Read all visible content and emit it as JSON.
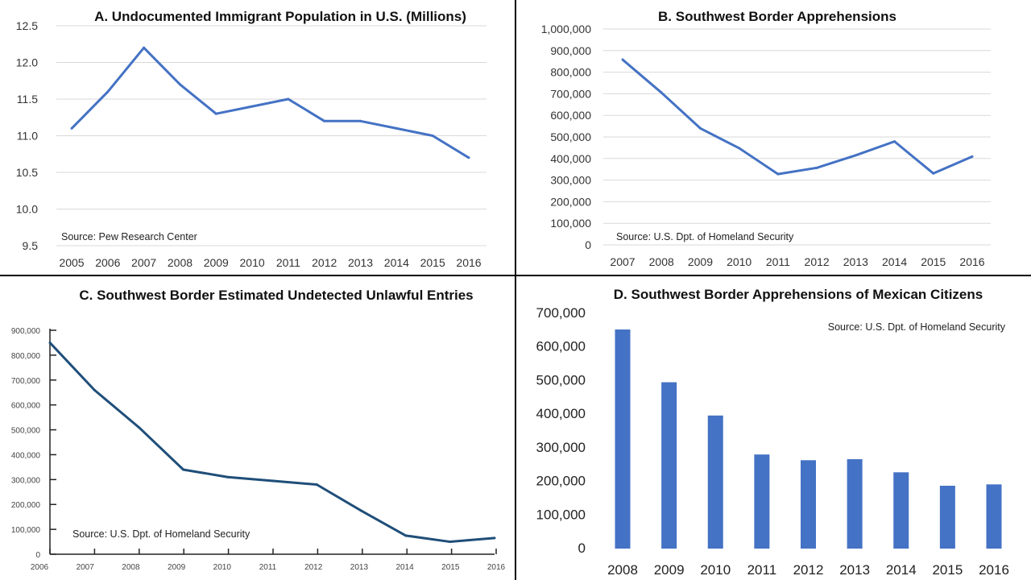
{
  "colors": {
    "line": "#4472c4",
    "line_c": "#1f4e79",
    "bar": "#4472c4",
    "grid": "#d9d9d9",
    "divider": "#000000"
  },
  "chart_data": [
    {
      "type": "line",
      "title": "A. Undocumented Immigrant Population in U.S. (Millions)",
      "source": "Source:  Pew Research Center",
      "categories": [
        "2005",
        "2006",
        "2007",
        "2008",
        "2009",
        "2010",
        "2011",
        "2012",
        "2013",
        "2014",
        "2015",
        "2016"
      ],
      "values": [
        11.1,
        11.6,
        12.2,
        11.7,
        11.3,
        11.4,
        11.5,
        11.2,
        11.2,
        11.1,
        11.0,
        10.7
      ],
      "yticks": [
        "9.5",
        "10.0",
        "10.5",
        "11.0",
        "11.5",
        "12.0",
        "12.5"
      ],
      "ylim": [
        9.5,
        12.5
      ],
      "grid": true
    },
    {
      "type": "line",
      "title": "B. Southwest Border Apprehensions",
      "source": "Source:  U.S. Dpt. of Homeland Security",
      "categories": [
        "2007",
        "2008",
        "2009",
        "2010",
        "2011",
        "2012",
        "2013",
        "2014",
        "2015",
        "2016"
      ],
      "values": [
        858000,
        705000,
        540000,
        448000,
        328000,
        357000,
        415000,
        479000,
        331000,
        409000
      ],
      "yticks": [
        "0",
        "100,000",
        "200,000",
        "300,000",
        "400,000",
        "500,000",
        "600,000",
        "700,000",
        "800,000",
        "900,000",
        "1,000,000"
      ],
      "ylim": [
        0,
        1000000
      ],
      "grid": true
    },
    {
      "type": "line",
      "title": "C. Southwest Border Estimated Undetected Unlawful Entries",
      "source": "Source:  U.S. Dpt. of Homeland Security",
      "categories": [
        "2006",
        "2007",
        "2008",
        "2009",
        "2010",
        "2011",
        "2012",
        "2013",
        "2014",
        "2015",
        "2016"
      ],
      "values": [
        850000,
        660000,
        510000,
        340000,
        310000,
        295000,
        280000,
        175000,
        75000,
        50000,
        65000
      ],
      "yticks": [
        "0",
        "100,000",
        "200,000",
        "300,000",
        "400,000",
        "500,000",
        "600,000",
        "700,000",
        "800,000",
        "900,000"
      ],
      "ylim": [
        0,
        900000
      ],
      "grid": false
    },
    {
      "type": "bar",
      "title": "D. Southwest Border Apprehensions of Mexican Citizens",
      "source": "Source:  U.S. Dpt. of Homeland Security",
      "categories": [
        "2008",
        "2009",
        "2010",
        "2011",
        "2012",
        "2013",
        "2014",
        "2015",
        "2016"
      ],
      "values": [
        652000,
        495000,
        396000,
        280000,
        263000,
        266000,
        227000,
        187000,
        191000
      ],
      "yticks": [
        "0",
        "100,000",
        "200,000",
        "300,000",
        "400,000",
        "500,000",
        "600,000",
        "700,000"
      ],
      "ylim": [
        0,
        700000
      ],
      "grid": false
    }
  ]
}
